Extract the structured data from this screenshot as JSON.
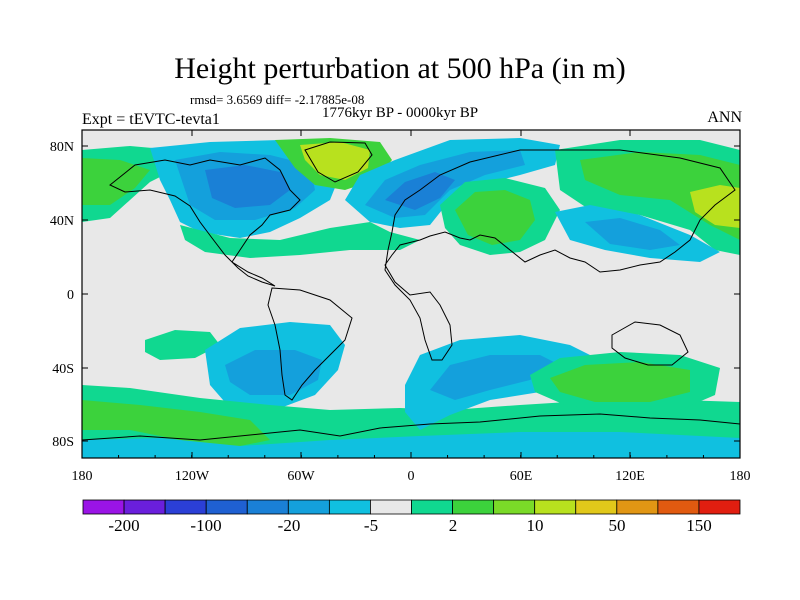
{
  "title": "Height perturbation at 500 hPa (in m)",
  "stats": "rmsd= 3.6569 diff= -2.17885e-08",
  "period": "1776kyr BP - 0000kyr BP",
  "expt": "Expt = tEVTC-tevta1",
  "season": "ANN",
  "axes": {
    "lat_ticks": [
      "80N",
      "40N",
      "0",
      "40S",
      "80S"
    ],
    "lon_ticks": [
      "180",
      "120W",
      "60W",
      "0",
      "60E",
      "120E",
      "180"
    ]
  },
  "colorbar": {
    "colors": [
      "#9a14e6",
      "#6a1fdc",
      "#2b3fd6",
      "#1f60d2",
      "#1a80d6",
      "#14a0dc",
      "#10c0e0",
      "#e8e8e8",
      "#10d890",
      "#3cd23c",
      "#7ada28",
      "#b8e11e",
      "#e1c81a",
      "#e19614",
      "#e15a10",
      "#e11e10"
    ],
    "labels": [
      "-200",
      "-100",
      "-20",
      "-5",
      "2",
      "10",
      "50",
      "150"
    ]
  },
  "colors": {
    "background": "#e8e8e8",
    "neg_weak": "#10c0e0",
    "neg_mid": "#14a0dc",
    "neg_strong": "#1a80d6",
    "pos_weak": "#10d890",
    "pos_mid": "#3cd23c",
    "pos_strong": "#7ada28",
    "pos_peak": "#b8e11e"
  }
}
